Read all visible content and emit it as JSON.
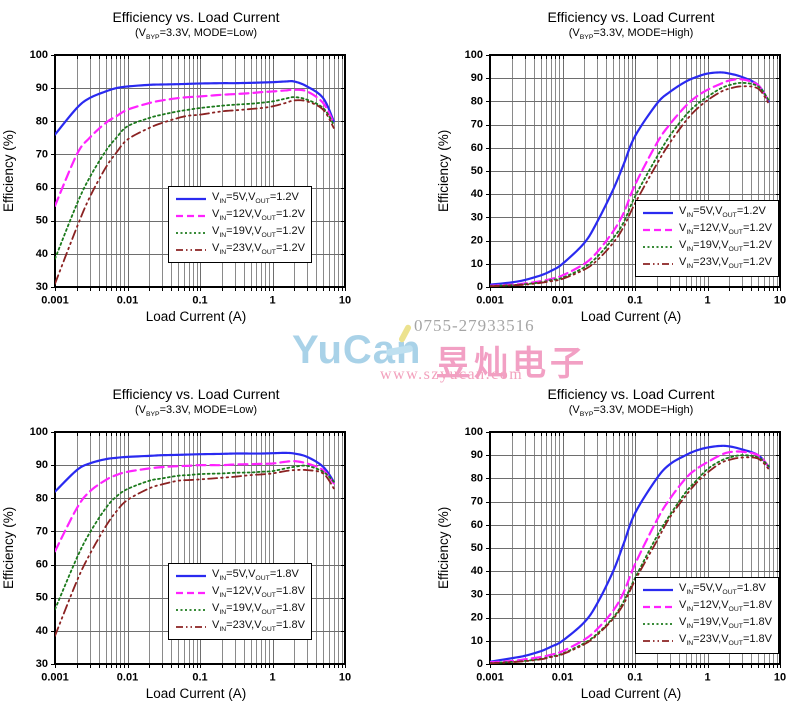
{
  "page": {
    "background": "#ffffff"
  },
  "watermark": {
    "brand": "YuCan",
    "phone": "0755-27933516",
    "company": "昱灿电子",
    "website": "www.szyucan.com",
    "brand_color": "#a9d2e8",
    "pink_color": "#f2a0c4",
    "yellow_accent": "#ece28e"
  },
  "chart_data": [
    {
      "type": "line",
      "title": "Efficiency vs. Load Current",
      "subtitle": "(V_{BYP}=3.3V, MODE=Low)",
      "xlabel": "Load Current (A)",
      "ylabel": "Efficiency (%)",
      "x_scale": "log",
      "xlim": [
        0.001,
        10
      ],
      "xticks": [
        0.001,
        0.01,
        0.1,
        1,
        10
      ],
      "xtick_labels": [
        "0.001",
        "0.01",
        "0.1",
        "1",
        "10"
      ],
      "ylim": [
        30,
        100
      ],
      "ytick_step": 10,
      "grid": true,
      "legend_position": "inside-center-right",
      "x": [
        0.001,
        0.002,
        0.003,
        0.005,
        0.007,
        0.01,
        0.02,
        0.03,
        0.05,
        0.07,
        0.1,
        0.2,
        0.3,
        0.5,
        0.7,
        1,
        1.5,
        2,
        3,
        5,
        7
      ],
      "series": [
        {
          "name": "V_{IN}=5V,V_{OUT}=1.2V",
          "color": "#2a2af0",
          "style": "solid",
          "values": [
            76,
            84,
            87,
            89,
            90,
            90.5,
            91,
            91.1,
            91.2,
            91.3,
            91.4,
            91.5,
            91.5,
            91.6,
            91.7,
            91.8,
            92,
            92,
            90.5,
            87,
            80
          ]
        },
        {
          "name": "V_{IN}=12V,V_{OUT}=1.2V",
          "color": "#ff22ff",
          "style": "dashed",
          "values": [
            54.5,
            70,
            75,
            79.5,
            81.5,
            83.5,
            85.5,
            86.3,
            87,
            87.3,
            87.5,
            88,
            88.2,
            88.5,
            88.8,
            89,
            89.3,
            89.5,
            89,
            85.5,
            79.5
          ]
        },
        {
          "name": "V_{IN}=19V,V_{OUT}=1.2V",
          "color": "#1b7a1b",
          "style": "dotted",
          "values": [
            38.5,
            55,
            63,
            71,
            75,
            78.5,
            81,
            82,
            83,
            83.5,
            84,
            84.7,
            85,
            85.3,
            85.6,
            86,
            86.8,
            87.3,
            86.5,
            84,
            79
          ]
        },
        {
          "name": "V_{IN}=23V,V_{OUT}=1.2V",
          "color": "#8b2222",
          "style": "dashdotdot",
          "values": [
            31,
            48,
            57,
            66,
            70.5,
            74.5,
            78,
            79.5,
            81,
            81.7,
            82,
            83,
            83.3,
            83.7,
            84,
            84.5,
            85.5,
            86.3,
            86,
            83.5,
            78
          ]
        }
      ]
    },
    {
      "type": "line",
      "title": "Efficiency vs. Load Current",
      "subtitle": "(V_{BYP}=3.3V, MODE=High)",
      "xlabel": "Load Current (A)",
      "ylabel": "Efficiency (%)",
      "x_scale": "log",
      "xlim": [
        0.001,
        10
      ],
      "xticks": [
        0.001,
        0.01,
        0.1,
        1,
        10
      ],
      "xtick_labels": [
        "0.001",
        "0.01",
        "0.1",
        "1",
        "10"
      ],
      "ylim": [
        0,
        100
      ],
      "ytick_step": 10,
      "grid": true,
      "legend_position": "inside-bottom-right",
      "x": [
        0.001,
        0.002,
        0.003,
        0.005,
        0.007,
        0.01,
        0.02,
        0.03,
        0.05,
        0.07,
        0.1,
        0.2,
        0.3,
        0.5,
        0.7,
        1,
        1.5,
        2,
        3,
        5,
        7
      ],
      "series": [
        {
          "name": "V_{IN}=5V,V_{OUT}=1.2V",
          "color": "#2a2af0",
          "style": "solid",
          "values": [
            1,
            2,
            3,
            5,
            7,
            10,
            19,
            28,
            42,
            53,
            65,
            79,
            84,
            88.5,
            90.5,
            92,
            92.5,
            92,
            90.5,
            87,
            80
          ]
        },
        {
          "name": "V_{IN}=12V,V_{OUT}=1.2V",
          "color": "#ff22ff",
          "style": "dashed",
          "values": [
            0.5,
            1,
            1.5,
            2.5,
            3.5,
            5,
            10,
            15,
            24,
            32,
            44,
            62,
            70,
            78,
            82,
            85,
            87.5,
            89,
            89.5,
            87,
            80
          ]
        },
        {
          "name": "V_{IN}=19V,V_{OUT}=1.2V",
          "color": "#1b7a1b",
          "style": "dotted",
          "values": [
            0.4,
            0.8,
            1.2,
            2,
            3,
            4,
            8.5,
            13,
            21,
            28,
            39,
            56,
            65,
            74,
            78.5,
            82,
            85.5,
            87,
            88,
            86.5,
            80.5
          ]
        },
        {
          "name": "V_{IN}=23V,V_{OUT}=1.2V",
          "color": "#8b2222",
          "style": "dashdotdot",
          "values": [
            0.3,
            0.7,
            1,
            1.8,
            2.5,
            3.5,
            7.5,
            11.5,
            19,
            26,
            36,
            53,
            62,
            71.5,
            76.5,
            80.5,
            84,
            85.5,
            86.5,
            85.5,
            79
          ]
        }
      ]
    },
    {
      "type": "line",
      "title": "Efficiency vs. Load Current",
      "subtitle": "(V_{BYP}=3.3V, MODE=Low)",
      "xlabel": "Load Current (A)",
      "ylabel": "Efficiency (%)",
      "x_scale": "log",
      "xlim": [
        0.001,
        10
      ],
      "xticks": [
        0.001,
        0.01,
        0.1,
        1,
        10
      ],
      "xtick_labels": [
        "0.001",
        "0.01",
        "0.1",
        "1",
        "10"
      ],
      "ylim": [
        30,
        100
      ],
      "ytick_step": 10,
      "grid": true,
      "legend_position": "inside-center-right",
      "x": [
        0.001,
        0.002,
        0.003,
        0.005,
        0.007,
        0.01,
        0.02,
        0.03,
        0.05,
        0.07,
        0.1,
        0.2,
        0.3,
        0.5,
        0.7,
        1,
        1.5,
        2,
        3,
        5,
        7
      ],
      "series": [
        {
          "name": "V_{IN}=5V,V_{OUT}=1.8V",
          "color": "#2a2af0",
          "style": "solid",
          "values": [
            82,
            88.5,
            90.5,
            91.8,
            92.2,
            92.5,
            92.8,
            93,
            93.1,
            93.2,
            93.3,
            93.4,
            93.5,
            93.5,
            93.5,
            93.6,
            93.7,
            93.5,
            92.5,
            89.5,
            85
          ]
        },
        {
          "name": "V_{IN}=12V,V_{OUT}=1.8V",
          "color": "#ff22ff",
          "style": "dashed",
          "values": [
            64,
            77,
            82,
            85.5,
            87,
            88,
            89,
            89.4,
            89.7,
            89.8,
            90,
            90,
            90.2,
            90.3,
            90.4,
            90.5,
            91,
            91.2,
            90.5,
            88.5,
            84.5
          ]
        },
        {
          "name": "V_{IN}=19V,V_{OUT}=1.8V",
          "color": "#1b7a1b",
          "style": "dotted",
          "values": [
            46.5,
            62,
            69.5,
            77,
            80.5,
            82.8,
            85.3,
            86,
            86.8,
            87,
            87.3,
            87.5,
            87.7,
            87.8,
            88,
            88.2,
            89,
            89.5,
            89.8,
            88,
            85
          ]
        },
        {
          "name": "V_{IN}=23V,V_{OUT}=1.8V",
          "color": "#8b2222",
          "style": "dashdotdot",
          "values": [
            38.5,
            55,
            63,
            71.5,
            76,
            79.5,
            83,
            84.2,
            85.3,
            85.5,
            85.7,
            86.2,
            86.5,
            87,
            87.2,
            87.5,
            88.2,
            88.5,
            88.5,
            87.5,
            83
          ]
        }
      ]
    },
    {
      "type": "line",
      "title": "Efficiency vs. Load Current",
      "subtitle": "(V_{BYP}=3.3V, MODE=High)",
      "xlabel": "Load Current (A)",
      "ylabel": "Efficiency (%)",
      "x_scale": "log",
      "xlim": [
        0.001,
        10
      ],
      "xticks": [
        0.001,
        0.01,
        0.1,
        1,
        10
      ],
      "xtick_labels": [
        "0.001",
        "0.01",
        "0.1",
        "1",
        "10"
      ],
      "ylim": [
        0,
        100
      ],
      "ytick_step": 10,
      "grid": true,
      "legend_position": "inside-bottom-right",
      "x": [
        0.001,
        0.002,
        0.003,
        0.005,
        0.007,
        0.01,
        0.02,
        0.03,
        0.05,
        0.07,
        0.1,
        0.2,
        0.3,
        0.5,
        0.7,
        1,
        1.5,
        2,
        3,
        5,
        7
      ],
      "series": [
        {
          "name": "V_{IN}=5V,V_{OUT}=1.8V",
          "color": "#2a2af0",
          "style": "solid",
          "values": [
            1,
            2.5,
            3.5,
            5.5,
            7.5,
            10,
            18,
            26,
            40,
            52,
            65,
            80,
            86,
            90,
            92,
            93.3,
            94,
            93.8,
            92.5,
            90,
            85
          ]
        },
        {
          "name": "V_{IN}=12V,V_{OUT}=1.8V",
          "color": "#ff22ff",
          "style": "dashed",
          "values": [
            0.7,
            1.3,
            2,
            3,
            4,
            5.5,
            10.5,
            15,
            23,
            31,
            43,
            62,
            71,
            80,
            84,
            87,
            90,
            91.3,
            91.5,
            90,
            85
          ]
        },
        {
          "name": "V_{IN}=19V,V_{OUT}=1.8V",
          "color": "#1b7a1b",
          "style": "dotted",
          "values": [
            0.4,
            0.9,
            1.3,
            2.2,
            3.2,
            4.5,
            9,
            13,
            20,
            27,
            37,
            55,
            64,
            74,
            79,
            84,
            87.5,
            89,
            90,
            89,
            85.3
          ]
        },
        {
          "name": "V_{IN}=23V,V_{OUT}=1.8V",
          "color": "#8b2222",
          "style": "dashdotdot",
          "values": [
            0.3,
            0.8,
            1.2,
            2,
            3,
            4.2,
            8.5,
            12.5,
            19.5,
            26,
            36,
            53,
            63,
            72.5,
            78,
            82.5,
            86.5,
            88,
            89,
            88.5,
            84
          ]
        }
      ]
    }
  ]
}
